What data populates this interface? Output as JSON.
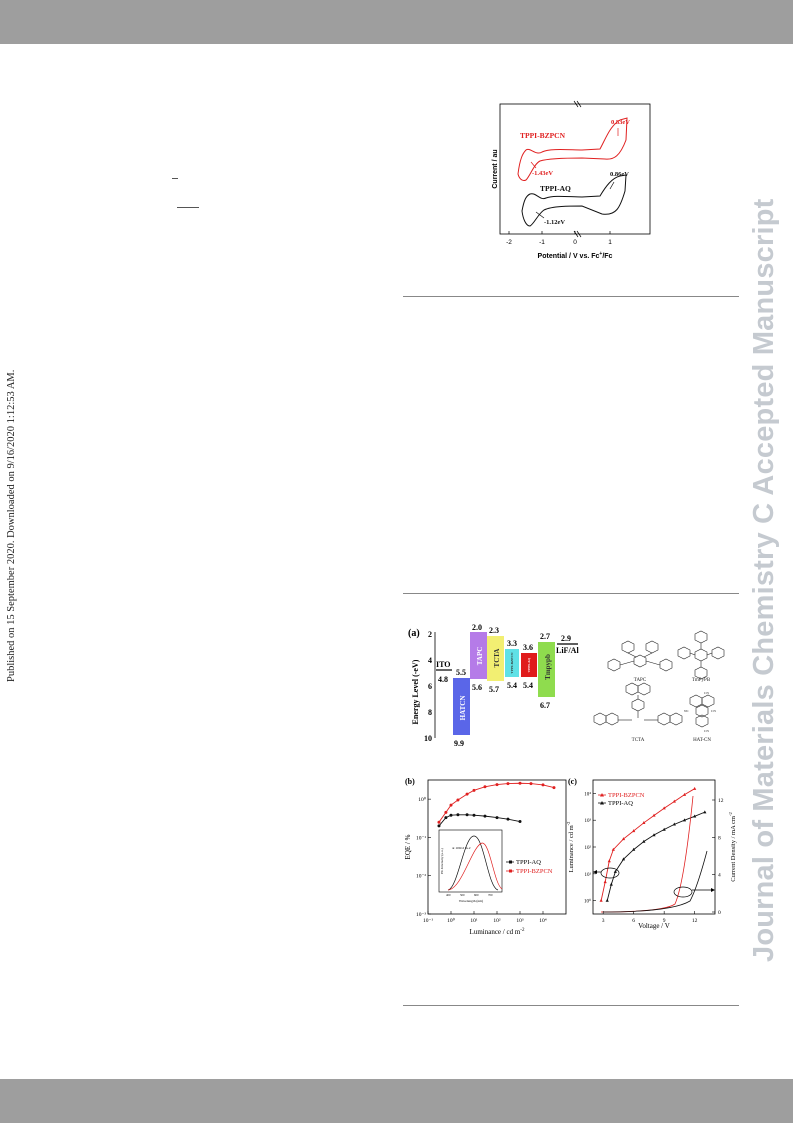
{
  "side_note": "Published on 15 September 2020. Downloaded on 9/16/2020 1:12:53 AM.",
  "watermark": "Journal of Materials Chemistry C Accepted Manuscript",
  "cv": {
    "ylabel": "Current / au",
    "xlabel_main": "Potential / V vs. Fc",
    "xlabel_sup": "+",
    "xlabel_end": "/Fc",
    "xticks": [
      "-2",
      "-1",
      "0",
      "1"
    ],
    "bzpcn_label": "TPPI-BZPCN",
    "aq_label": "TPPI-AQ",
    "bzpcn_ox": "0.83eV",
    "bzpcn_red": "-1.43eV",
    "aq_ox": "0.86eV",
    "aq_red": "-1.12eV",
    "colors": {
      "bzpcn": "#e02020",
      "aq": "#111111"
    }
  },
  "energy": {
    "panel": "(a)",
    "ylabel": "Energy Level (-eV)",
    "yticks": [
      "2",
      "4",
      "6",
      "8",
      "10"
    ],
    "layers": [
      {
        "name": "ITO",
        "lumo": "4.8"
      },
      {
        "name": "HATCN",
        "lumo": "5.5",
        "homo": "9.9"
      },
      {
        "name": "TAPC",
        "lumo": "2.0",
        "homo": "5.6"
      },
      {
        "name": "TCTA",
        "lumo": "2.3",
        "homo": "5.7"
      },
      {
        "name": "TPPI-BZPCN",
        "lumo": "3.3",
        "homo": "5.4"
      },
      {
        "name": "TPPI-AQ",
        "lumo": "3.6",
        "homo": "5.4"
      },
      {
        "name": "Tmpypb",
        "lumo": "2.7",
        "homo": "6.7"
      },
      {
        "name": "LiF/Al",
        "lumo": "2.9"
      }
    ],
    "molecules": [
      "TAPC",
      "TmPyPB",
      "TCTA",
      "HAT-CN"
    ]
  },
  "chart_data": [
    {
      "type": "line",
      "panel": "(b)",
      "xlabel": "Luminance / cd m",
      "xlabel_sup": "-2",
      "ylabel": "EQE / %",
      "xscale": "log",
      "yscale": "log",
      "xticks": [
        "10⁻¹",
        "10⁰",
        "10¹",
        "10²",
        "10³",
        "10⁴"
      ],
      "yticks": [
        "10⁰",
        "10⁻¹",
        "10⁻²",
        "10⁻³"
      ],
      "series": [
        {
          "name": "TPPI-AQ",
          "x": [
            0.3,
            0.6,
            1,
            2,
            5,
            10,
            30,
            100,
            300,
            1000
          ],
          "y": [
            0.2,
            0.33,
            0.38,
            0.39,
            0.39,
            0.38,
            0.36,
            0.33,
            0.3,
            0.26
          ]
        },
        {
          "name": "TPPI-BZPCN",
          "x": [
            0.3,
            0.6,
            1,
            2,
            5,
            10,
            30,
            100,
            300,
            1000,
            3000,
            10000,
            30000
          ],
          "y": [
            0.25,
            0.45,
            0.7,
            0.95,
            1.35,
            1.7,
            2.1,
            2.4,
            2.55,
            2.6,
            2.55,
            2.35,
            2.0
          ]
        }
      ],
      "inset": {
        "xlabel": "Wavelength (nm)",
        "ylabel": "EL Intensity (a.u.)",
        "note": "at 100cd m-2",
        "xticks": [
          "400",
          "500",
          "600",
          "700"
        ]
      }
    },
    {
      "type": "line",
      "panel": "(c)",
      "xlabel": "Voltage / V",
      "ylabel_left": "Luminance / cd m",
      "ylabel_left_sup": "-2",
      "ylabel_right": "Current Density / mA cm",
      "ylabel_right_sup": "-2",
      "xticks": [
        "3",
        "6",
        "9",
        "12"
      ],
      "yticks_left": [
        "10⁴",
        "10³",
        "10²",
        "10¹",
        "10⁰"
      ],
      "yticks_right": [
        "12",
        "8",
        "4",
        "0"
      ],
      "series": [
        {
          "name": "TPPI-BZPCN",
          "x": [
            2.8,
            3.2,
            3.6,
            4,
            5,
            6,
            7,
            8,
            9,
            10,
            11,
            12
          ],
          "y": [
            1,
            5,
            30,
            80,
            200,
            400,
            800,
            1500,
            2800,
            5000,
            9000,
            15000
          ]
        },
        {
          "name": "TPPI-AQ",
          "x": [
            3.4,
            3.8,
            4.2,
            5,
            6,
            7,
            8,
            9,
            10,
            11,
            12,
            13
          ],
          "y": [
            1,
            4,
            12,
            35,
            80,
            160,
            280,
            450,
            700,
            1000,
            1400,
            2000
          ]
        }
      ]
    }
  ]
}
